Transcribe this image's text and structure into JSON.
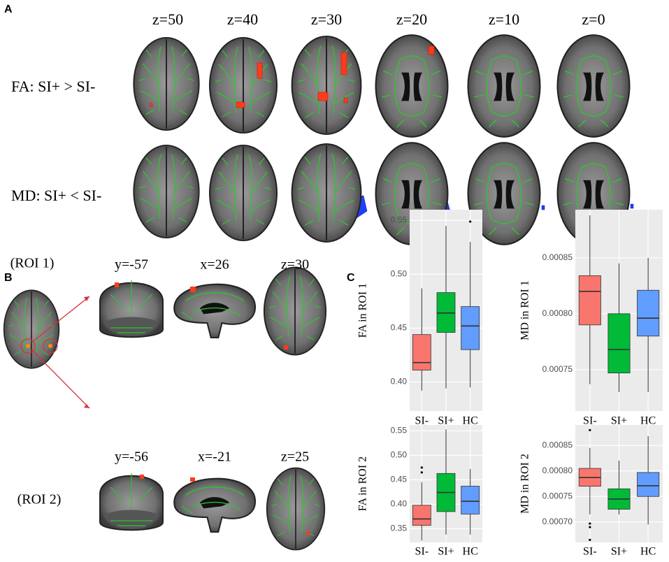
{
  "figure": {
    "panel_labels": [
      "A",
      "B",
      "C"
    ],
    "a_columns": [
      "z=50",
      "z=40",
      "z=30",
      "z=20",
      "z=10",
      "z=0"
    ],
    "a_rows": [
      "FA: SI+ > SI-",
      "MD: SI+ < SI-"
    ],
    "b_rois": [
      "(ROI 1)",
      "(ROI 2)"
    ],
    "b_roi1_slices": [
      "y=-57",
      "x=26",
      "z=30"
    ],
    "b_roi2_slices": [
      "y=-56",
      "x=-21",
      "z=25"
    ]
  },
  "chart_data": [
    {
      "type": "box",
      "y_label": "FA in ROI 1",
      "categories": [
        "SI-",
        "SI+",
        "HC"
      ],
      "colors": [
        "#F8766D",
        "#00BA38",
        "#619CFF"
      ],
      "ylim": [
        0.373,
        0.56
      ],
      "yticks": [
        {
          "value": 0.4,
          "label": "0.40"
        },
        {
          "value": 0.45,
          "label": "0.45"
        },
        {
          "value": 0.5,
          "label": "0.50"
        },
        {
          "value": 0.55,
          "label": "0.55"
        }
      ],
      "grid": true,
      "boxes": [
        {
          "min": 0.392,
          "q1": 0.411,
          "median": 0.418,
          "q3": 0.444,
          "max": 0.487,
          "outliers": []
        },
        {
          "min": 0.394,
          "q1": 0.446,
          "median": 0.464,
          "q3": 0.483,
          "max": 0.545,
          "outliers": []
        },
        {
          "min": 0.395,
          "q1": 0.43,
          "median": 0.452,
          "q3": 0.47,
          "max": 0.53,
          "outliers": [
            0.549
          ]
        }
      ]
    },
    {
      "type": "box",
      "y_label": "MD in ROI 1",
      "categories": [
        "SI-",
        "SI+",
        "HC"
      ],
      "colors": [
        "#F8766D",
        "#00BA38",
        "#619CFF"
      ],
      "ylim": [
        0.000713,
        0.000893
      ],
      "yticks": [
        0.00075,
        {
          "value": 0.0008,
          "label": "0.00080"
        },
        0.00085
      ],
      "grid": true,
      "boxes": [
        {
          "min": 0.000737,
          "q1": 0.00079,
          "median": 0.00082,
          "q3": 0.000834,
          "max": 0.000888,
          "outliers": []
        },
        {
          "min": 0.00073,
          "q1": 0.000747,
          "median": 0.000768,
          "q3": 0.0008,
          "max": 0.000845,
          "outliers": []
        },
        {
          "min": 0.00073,
          "q1": 0.00078,
          "median": 0.000796,
          "q3": 0.000821,
          "max": 0.00085,
          "outliers": []
        }
      ]
    },
    {
      "type": "box",
      "y_label": "FA in ROI 2",
      "categories": [
        "SI-",
        "SI+",
        "HC"
      ],
      "colors": [
        "#F8766D",
        "#00BA38",
        "#619CFF"
      ],
      "ylim": [
        0.322,
        0.562
      ],
      "yticks": [
        0.35,
        {
          "value": 0.4,
          "label": "0.40"
        },
        0.45,
        {
          "value": 0.5,
          "label": "0.50"
        },
        0.55
      ],
      "grid": true,
      "boxes": [
        {
          "min": 0.326,
          "q1": 0.357,
          "median": 0.37,
          "q3": 0.398,
          "max": 0.445,
          "outliers": [
            0.465,
            0.475
          ]
        },
        {
          "min": 0.338,
          "q1": 0.385,
          "median": 0.424,
          "q3": 0.463,
          "max": 0.553,
          "outliers": []
        },
        {
          "min": 0.338,
          "q1": 0.38,
          "median": 0.406,
          "q3": 0.437,
          "max": 0.472,
          "outliers": []
        }
      ]
    },
    {
      "type": "box",
      "y_label": "MD in ROI 2",
      "categories": [
        "SI-",
        "SI+",
        "HC"
      ],
      "colors": [
        "#F8766D",
        "#00BA38",
        "#619CFF"
      ],
      "ylim": [
        0.00066,
        0.00089
      ],
      "yticks": [
        {
          "value": 0.0007,
          "label": "0.00070"
        },
        0.00075,
        {
          "value": 0.0008,
          "label": "0.00080"
        },
        0.00085
      ],
      "grid": true,
      "boxes": [
        {
          "min": 0.000715,
          "q1": 0.00077,
          "median": 0.000787,
          "q3": 0.000805,
          "max": 0.000845,
          "outliers": [
            0.00088,
            0.000697,
            0.00069,
            0.000665
          ]
        },
        {
          "min": 0.000715,
          "q1": 0.000725,
          "median": 0.000745,
          "q3": 0.000765,
          "max": 0.00082,
          "outliers": []
        },
        {
          "min": 0.000695,
          "q1": 0.00075,
          "median": 0.000771,
          "q3": 0.000797,
          "max": 0.000868,
          "outliers": []
        }
      ]
    }
  ]
}
